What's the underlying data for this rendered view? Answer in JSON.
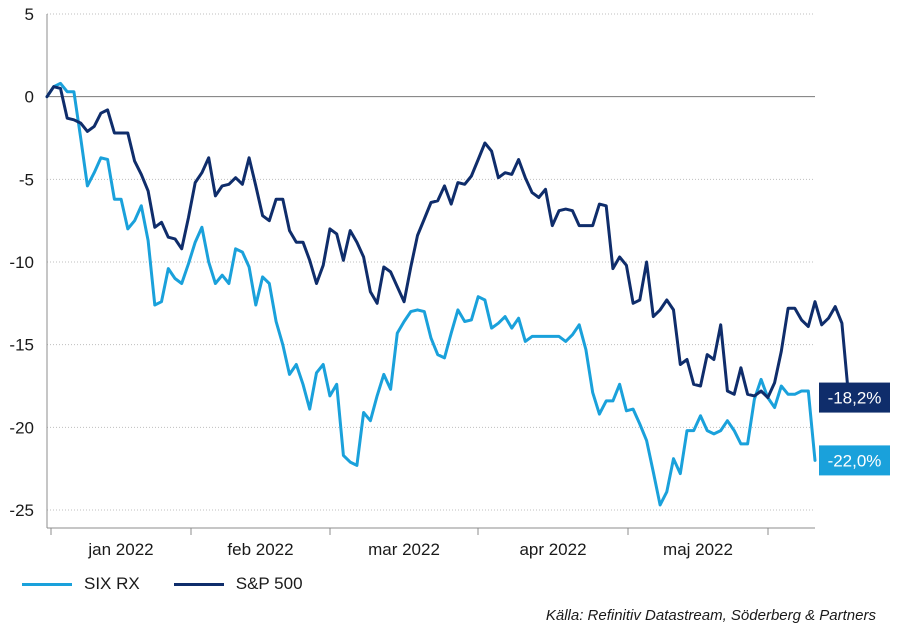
{
  "chart_data": {
    "type": "line",
    "ylim": [
      -25,
      5
    ],
    "yticks": [
      "5",
      "0",
      "-5",
      "-10",
      "-15",
      "-20",
      "-25"
    ],
    "ytick_values": [
      5,
      0,
      -5,
      -10,
      -15,
      -20,
      -25
    ],
    "month_labels": [
      "jan 2022",
      "feb 2022",
      "mar 2022",
      "apr 2022",
      "maj 2022"
    ],
    "grid": true,
    "legend_position": "bottom-left",
    "series": [
      {
        "name": "SIX RX",
        "color": "#1aa1db",
        "end_label": "-22,0%",
        "values": [
          0,
          0.6,
          0.8,
          0.3,
          0.3,
          -2.5,
          -5.4,
          -4.6,
          -3.7,
          -3.8,
          -6.2,
          -6.2,
          -8.0,
          -7.5,
          -6.6,
          -8.7,
          -12.6,
          -12.4,
          -10.4,
          -11.0,
          -11.3,
          -10.1,
          -8.8,
          -7.9,
          -10.0,
          -11.3,
          -10.8,
          -11.3,
          -9.2,
          -9.4,
          -10.3,
          -12.6,
          -10.9,
          -11.3,
          -13.6,
          -15.0,
          -16.8,
          -16.2,
          -17.4,
          -18.9,
          -16.7,
          -16.2,
          -18.1,
          -17.4,
          -21.7,
          -22.1,
          -22.3,
          -19.1,
          -19.6,
          -18.1,
          -16.8,
          -17.7,
          -14.3,
          -13.6,
          -13.0,
          -12.9,
          -13.0,
          -14.6,
          -15.6,
          -15.8,
          -14.3,
          -12.9,
          -13.6,
          -13.5,
          -12.1,
          -12.3,
          -14.0,
          -13.7,
          -13.3,
          -14.0,
          -13.4,
          -14.8,
          -14.5,
          -14.5,
          -14.5,
          -14.5,
          -14.5,
          -14.8,
          -14.4,
          -13.8,
          -15.3,
          -17.9,
          -19.2,
          -18.4,
          -18.4,
          -17.4,
          -19.0,
          -18.9,
          -19.8,
          -20.8,
          -22.7,
          -24.7,
          -23.9,
          -21.9,
          -22.8,
          -20.2,
          -20.2,
          -19.3,
          -20.2,
          -20.4,
          -20.2,
          -19.6,
          -20.2,
          -21.0,
          -21.0,
          -18.3,
          -17.1,
          -18.2,
          -18.8,
          -17.5,
          -18.0,
          -18.0,
          -17.8,
          -17.8,
          -22.0
        ]
      },
      {
        "name": "S&P 500",
        "color": "#0f2d6b",
        "end_label": "-18,2%",
        "values": [
          0,
          0.6,
          0.5,
          -1.3,
          -1.4,
          -1.6,
          -2.1,
          -1.8,
          -1.0,
          -0.8,
          -2.2,
          -2.2,
          -2.2,
          -3.9,
          -4.7,
          -5.7,
          -7.9,
          -7.6,
          -8.5,
          -8.6,
          -9.2,
          -7.3,
          -5.2,
          -4.6,
          -3.7,
          -6.0,
          -5.4,
          -5.3,
          -4.9,
          -5.3,
          -3.7,
          -5.4,
          -7.2,
          -7.5,
          -6.2,
          -6.2,
          -8.1,
          -8.8,
          -8.8,
          -9.9,
          -11.3,
          -10.2,
          -8.0,
          -8.3,
          -9.9,
          -8.1,
          -8.8,
          -9.7,
          -11.8,
          -12.5,
          -10.3,
          -10.6,
          -11.5,
          -12.4,
          -10.3,
          -8.4,
          -7.4,
          -6.4,
          -6.3,
          -5.4,
          -6.5,
          -5.2,
          -5.3,
          -4.8,
          -3.8,
          -2.8,
          -3.3,
          -4.9,
          -4.6,
          -4.7,
          -3.8,
          -4.9,
          -5.8,
          -6.1,
          -5.6,
          -7.8,
          -6.9,
          -6.8,
          -6.9,
          -7.8,
          -7.8,
          -7.8,
          -6.5,
          -6.6,
          -10.4,
          -9.7,
          -10.2,
          -12.5,
          -12.3,
          -10.0,
          -13.3,
          -12.9,
          -12.3,
          -12.9,
          -16.2,
          -15.9,
          -17.4,
          -17.5,
          -15.6,
          -15.9,
          -13.8,
          -17.8,
          -18.0,
          -16.4,
          -18.0,
          -18.1,
          -17.8,
          -18.2,
          -17.3,
          -15.4,
          -12.8,
          -12.8,
          -13.5,
          -13.9,
          -12.4,
          -13.8,
          -13.4,
          -12.7,
          -13.7,
          -18.2
        ]
      }
    ]
  },
  "source_text": "Källa: Refinitiv Datastream, Söderberg & Partners"
}
